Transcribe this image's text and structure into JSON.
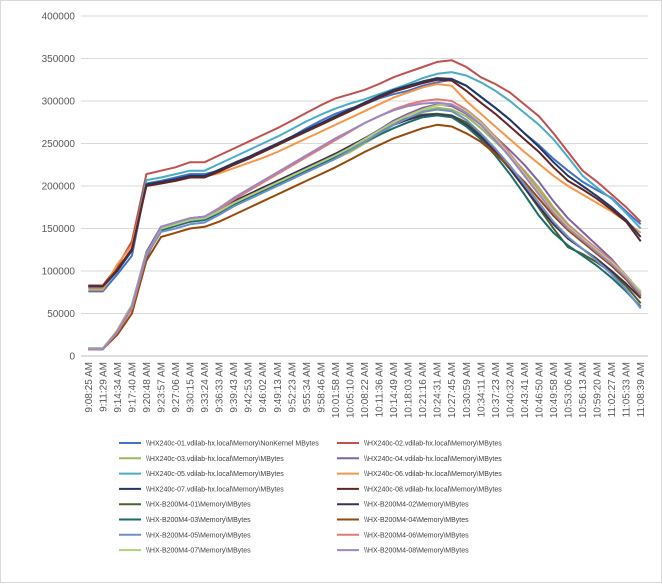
{
  "chart_data": {
    "type": "line",
    "title": "",
    "xlabel": "",
    "ylabel": "",
    "ylim": [
      0,
      400000
    ],
    "yticks": [
      "0",
      "50000",
      "100000",
      "150000",
      "200000",
      "250000",
      "300000",
      "350000",
      "400000"
    ],
    "grid": true,
    "legend_position": "bottom",
    "categories": [
      "9:08:25 AM",
      "9:11:29 AM",
      "9:14:34 AM",
      "9:17:40 AM",
      "9:20:48 AM",
      "9:23:57 AM",
      "9:27:06 AM",
      "9:30:15 AM",
      "9:33:24 AM",
      "9:36:33 AM",
      "9:39:43 AM",
      "9:42:53 AM",
      "9:46:02 AM",
      "9:49:13 AM",
      "9:52:23 AM",
      "9:55:34 AM",
      "9:58:46 AM",
      "10:01:58 AM",
      "10:05:10 AM",
      "10:08:22 AM",
      "10:11:36 AM",
      "10:14:49 AM",
      "10:18:03 AM",
      "10:21:16 AM",
      "10:24:31 AM",
      "10:27:45 AM",
      "10:30:59 AM",
      "10:34:11 AM",
      "10:37:23 AM",
      "10:40:32 AM",
      "10:43:41 AM",
      "10:46:50 AM",
      "10:49:58 AM",
      "10:53:06 AM",
      "10:56:13 AM",
      "10:59:20 AM",
      "11:02:27 AM",
      "11:05:33 AM",
      "11:08:39 AM"
    ],
    "series": [
      {
        "name": "\\\\HX240c-01.vdilab-hx.local\\Memory\\NonKernel MBytes",
        "color": "#4472C4",
        "values": [
          76000,
          76000,
          96000,
          118000,
          203000,
          206000,
          210000,
          214000,
          214000,
          218000,
          225000,
          232000,
          240000,
          248000,
          258000,
          268000,
          277000,
          285000,
          291000,
          296000,
          303000,
          308000,
          312000,
          318000,
          322000,
          325000,
          318000,
          305000,
          292000,
          278000,
          262000,
          248000,
          232000,
          218000,
          205000,
          195000,
          186000,
          170000,
          155000
        ]
      },
      {
        "name": "\\\\HX240c-02.vdilab-hx.local\\Memory\\MBytes",
        "color": "#C0504D",
        "values": [
          83000,
          83000,
          105000,
          135000,
          214000,
          218000,
          222000,
          228000,
          228000,
          236000,
          244000,
          252000,
          260000,
          268000,
          277000,
          286000,
          295000,
          303000,
          308000,
          313000,
          320000,
          328000,
          334000,
          340000,
          346000,
          348000,
          340000,
          328000,
          320000,
          310000,
          296000,
          282000,
          262000,
          240000,
          218000,
          205000,
          190000,
          175000,
          158000
        ]
      },
      {
        "name": "\\\\HX240c-03.vdilab-hx.local\\Memory\\MBytes",
        "color": "#9BBB59",
        "values": [
          9000,
          9000,
          30000,
          60000,
          120000,
          148000,
          153000,
          158000,
          160000,
          168000,
          178000,
          186000,
          194000,
          202000,
          210000,
          218000,
          225000,
          232000,
          240000,
          250000,
          260000,
          272000,
          280000,
          288000,
          292000,
          290000,
          282000,
          268000,
          252000,
          236000,
          218000,
          198000,
          175000,
          155000,
          140000,
          125000,
          110000,
          92000,
          75000
        ]
      },
      {
        "name": "\\\\HX240c-04.vdilab-hx.local\\Memory\\MBytes",
        "color": "#8064A2",
        "values": [
          8000,
          8000,
          28000,
          58000,
          118000,
          150000,
          155000,
          161000,
          163000,
          171000,
          181000,
          189000,
          197000,
          205000,
          213000,
          221000,
          229000,
          237000,
          246000,
          256000,
          266000,
          277000,
          285000,
          292000,
          296000,
          294000,
          285000,
          272000,
          258000,
          242000,
          225000,
          205000,
          182000,
          162000,
          146000,
          130000,
          114000,
          94000,
          72000
        ]
      },
      {
        "name": "\\\\HX240c-05.vdilab-hx.local\\Memory\\MBytes",
        "color": "#4BACC6",
        "values": [
          80000,
          80000,
          100000,
          126000,
          207000,
          210000,
          214000,
          218000,
          218000,
          226000,
          234000,
          242000,
          250000,
          258000,
          267000,
          276000,
          284000,
          291000,
          297000,
          302000,
          308000,
          314000,
          320000,
          327000,
          332000,
          334000,
          330000,
          322000,
          312000,
          300000,
          286000,
          272000,
          255000,
          234000,
          212000,
          198000,
          185000,
          168000,
          150000
        ]
      },
      {
        "name": "\\\\HX240c-06.vdilab-hx.local\\Memory\\MBytes",
        "color": "#F79646",
        "values": [
          78000,
          78000,
          108000,
          130000,
          200000,
          204000,
          207000,
          211000,
          211000,
          215000,
          221000,
          227000,
          233000,
          240000,
          248000,
          256000,
          264000,
          272000,
          280000,
          288000,
          296000,
          304000,
          310000,
          316000,
          320000,
          318000,
          300000,
          285000,
          270000,
          255000,
          240000,
          226000,
          212000,
          200000,
          190000,
          180000,
          170000,
          158000,
          145000
        ]
      },
      {
        "name": "\\\\HX240c-07.vdilab-hx.local\\Memory\\MBytes",
        "color": "#1F3864",
        "values": [
          82000,
          82000,
          100000,
          124000,
          202000,
          205000,
          208000,
          212000,
          212000,
          219000,
          227000,
          234000,
          242000,
          250000,
          258000,
          266000,
          274000,
          282000,
          290000,
          298000,
          306000,
          313000,
          318000,
          323000,
          327000,
          326000,
          318000,
          305000,
          292000,
          278000,
          262000,
          246000,
          228000,
          212000,
          200000,
          188000,
          175000,
          160000,
          140000
        ]
      },
      {
        "name": "\\\\HX240c-08.vdilab-hx.local\\Memory\\MBytes",
        "color": "#632523",
        "values": [
          82000,
          82000,
          102000,
          126000,
          200000,
          203000,
          206000,
          210000,
          210000,
          217000,
          225000,
          232000,
          240000,
          248000,
          256000,
          264000,
          272000,
          280000,
          288000,
          296000,
          304000,
          311000,
          316000,
          321000,
          325000,
          324000,
          312000,
          298000,
          285000,
          270000,
          255000,
          240000,
          222000,
          206000,
          196000,
          185000,
          172000,
          158000,
          135000
        ]
      },
      {
        "name": "\\\\HX-B200M4-01\\Memory\\MBytes",
        "color": "#4F6228",
        "values": [
          9000,
          9000,
          28000,
          56000,
          116000,
          150000,
          155000,
          160000,
          162000,
          170000,
          180000,
          188000,
          196000,
          204000,
          212000,
          220000,
          228000,
          236000,
          245000,
          255000,
          265000,
          275000,
          280000,
          284000,
          285000,
          283000,
          275000,
          260000,
          242000,
          222000,
          198000,
          174000,
          150000,
          128000,
          120000,
          110000,
          98000,
          82000,
          62000
        ]
      },
      {
        "name": "\\\\HX-B200M4-02\\Memory\\MBytes",
        "color": "#3F3151",
        "values": [
          8000,
          8000,
          30000,
          60000,
          122000,
          152000,
          157000,
          162000,
          164000,
          172000,
          182000,
          190000,
          198000,
          206000,
          214000,
          222000,
          230000,
          238000,
          247000,
          256000,
          264000,
          272000,
          278000,
          283000,
          284000,
          282000,
          272000,
          258000,
          240000,
          220000,
          198000,
          176000,
          155000,
          138000,
          126000,
          114000,
          100000,
          85000,
          68000
        ]
      },
      {
        "name": "\\\\HX-B200M4-03\\Memory\\MBytes",
        "color": "#1E6B6B",
        "values": [
          9000,
          9000,
          29000,
          58000,
          118000,
          148000,
          153000,
          158000,
          160000,
          168000,
          178000,
          186000,
          194000,
          202000,
          210000,
          218000,
          226000,
          234000,
          243000,
          252000,
          260000,
          268000,
          275000,
          281000,
          283000,
          281000,
          270000,
          255000,
          236000,
          214000,
          190000,
          165000,
          145000,
          130000,
          118000,
          106000,
          92000,
          76000,
          58000
        ]
      },
      {
        "name": "\\\\HX-B200M4-04\\Memory\\MBytes",
        "color": "#984807",
        "values": [
          8000,
          8000,
          25000,
          50000,
          112000,
          140000,
          145000,
          150000,
          152000,
          158000,
          166000,
          174000,
          182000,
          190000,
          198000,
          206000,
          214000,
          222000,
          231000,
          240000,
          248000,
          256000,
          262000,
          268000,
          272000,
          270000,
          262000,
          252000,
          238000,
          222000,
          205000,
          185000,
          165000,
          148000,
          134000,
          120000,
          106000,
          90000,
          70000
        ]
      },
      {
        "name": "\\\\HX-B200M4-05\\Memory\\MBytes",
        "color": "#6F8FC9",
        "values": [
          9000,
          9000,
          28000,
          56000,
          118000,
          146000,
          150000,
          155000,
          157000,
          166000,
          176000,
          184000,
          192000,
          200000,
          208000,
          216000,
          224000,
          232000,
          242000,
          252000,
          262000,
          272000,
          280000,
          287000,
          290000,
          288000,
          278000,
          262000,
          244000,
          224000,
          202000,
          180000,
          158000,
          140000,
          126000,
          112000,
          96000,
          78000,
          56000
        ]
      },
      {
        "name": "\\\\HX-B200M4-06\\Memory\\MBytes",
        "color": "#E07B78",
        "values": [
          8000,
          8000,
          28000,
          56000,
          120000,
          150000,
          155000,
          160000,
          162000,
          172000,
          184000,
          194000,
          204000,
          214000,
          224000,
          234000,
          244000,
          254000,
          264000,
          274000,
          282000,
          290000,
          296000,
          300000,
          302000,
          300000,
          290000,
          276000,
          258000,
          238000,
          216000,
          194000,
          172000,
          154000,
          140000,
          126000,
          112000,
          95000,
          75000
        ]
      },
      {
        "name": "\\\\HX-B200M4-07\\Memory\\MBytes",
        "color": "#B3CF7A",
        "values": [
          9000,
          9000,
          30000,
          60000,
          121000,
          150000,
          155000,
          160000,
          162000,
          170000,
          180000,
          188000,
          196000,
          204000,
          212000,
          220000,
          228000,
          236000,
          245000,
          255000,
          265000,
          275000,
          283000,
          290000,
          295000,
          296000,
          288000,
          274000,
          256000,
          236000,
          214000,
          192000,
          170000,
          152000,
          138000,
          124000,
          110000,
          94000,
          76000
        ]
      },
      {
        "name": "\\\\HX-B200M4-08\\Memory\\MBytes",
        "color": "#9E86C1",
        "values": [
          8000,
          8000,
          29000,
          58000,
          120000,
          152000,
          157000,
          162000,
          164000,
          174000,
          186000,
          196000,
          206000,
          216000,
          226000,
          236000,
          246000,
          256000,
          265000,
          274000,
          282000,
          289000,
          294000,
          297000,
          298000,
          296000,
          286000,
          272000,
          254000,
          234000,
          212000,
          190000,
          168000,
          150000,
          136000,
          122000,
          108000,
          92000,
          72000
        ]
      }
    ]
  }
}
